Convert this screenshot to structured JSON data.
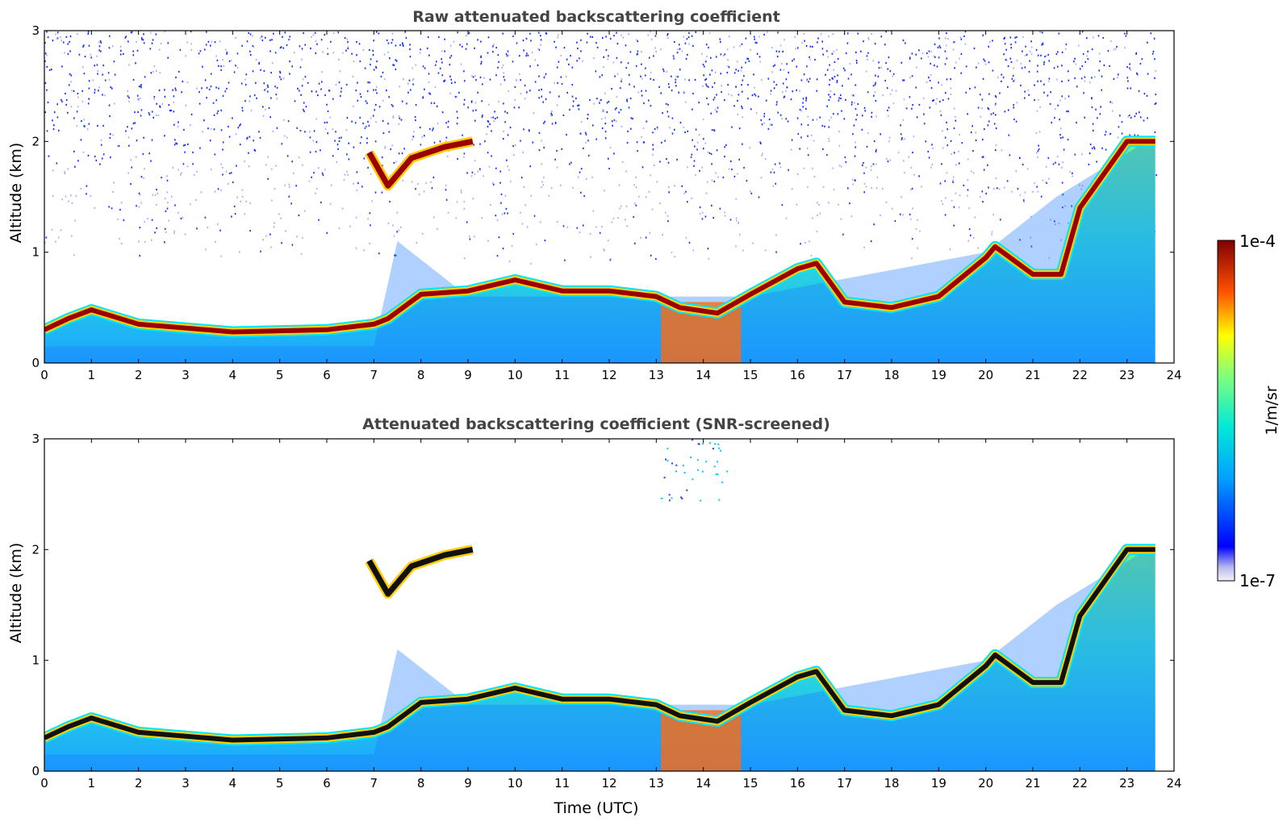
{
  "figure": {
    "colorbar": {
      "label": "1/m/sr",
      "top_label": "1e-4",
      "bottom_label": "1e-7",
      "colormap": "jet",
      "scale": "log",
      "range": [
        1e-07,
        0.0001
      ]
    },
    "xlabel": "Time (UTC)"
  },
  "chart_data": [
    {
      "type": "heatmap",
      "title": "Raw attenuated backscattering coefficient",
      "ylabel": "Altitude (km)",
      "xlabel": "",
      "xlim": [
        0,
        24
      ],
      "ylim": [
        0,
        3
      ],
      "x_ticks": [
        "0",
        "1",
        "2",
        "3",
        "4",
        "5",
        "6",
        "7",
        "8",
        "9",
        "10",
        "11",
        "12",
        "13",
        "14",
        "15",
        "16",
        "17",
        "18",
        "19",
        "20",
        "21",
        "22",
        "23",
        "24"
      ],
      "y_ticks": [
        "0",
        "1",
        "2",
        "3"
      ],
      "screened": false,
      "layer_top_km": {
        "x": [
          0,
          0.5,
          1,
          2,
          4,
          6,
          7,
          7.3,
          8,
          9,
          10,
          11,
          12,
          13,
          13.5,
          14.3,
          15,
          16,
          16.4,
          17,
          18,
          19,
          20,
          20.2,
          21,
          21.6,
          22,
          22.5,
          23,
          23.6
        ],
        "y": [
          0.3,
          0.4,
          0.48,
          0.35,
          0.28,
          0.3,
          0.35,
          0.4,
          0.62,
          0.65,
          0.75,
          0.65,
          0.65,
          0.6,
          0.5,
          0.45,
          0.62,
          0.85,
          0.9,
          0.55,
          0.5,
          0.6,
          0.95,
          1.05,
          0.8,
          0.8,
          1.4,
          1.7,
          2.0,
          2.0
        ]
      },
      "elevated_layer_km": {
        "x": [
          6.9,
          7.3,
          7.8,
          8.5,
          9.1
        ],
        "y": [
          1.9,
          1.6,
          1.85,
          1.95,
          2.0
        ]
      },
      "aerosol_top_km": {
        "x": [
          0,
          7,
          7.5,
          9,
          13,
          15,
          20,
          21.5,
          23.6
        ],
        "y": [
          0.15,
          0.15,
          1.1,
          0.6,
          0.6,
          0.6,
          1.0,
          1.5,
          2.05
        ]
      }
    },
    {
      "type": "heatmap",
      "title": "Attenuated backscattering coefficient (SNR-screened)",
      "ylabel": "Altitude (km)",
      "xlabel": "Time (UTC)",
      "xlim": [
        0,
        24
      ],
      "ylim": [
        0,
        3
      ],
      "x_ticks": [
        "0",
        "1",
        "2",
        "3",
        "4",
        "5",
        "6",
        "7",
        "8",
        "9",
        "10",
        "11",
        "12",
        "13",
        "14",
        "15",
        "16",
        "17",
        "18",
        "19",
        "20",
        "21",
        "22",
        "23",
        "24"
      ],
      "y_ticks": [
        "0",
        "1",
        "2",
        "3"
      ],
      "screened": true,
      "layer_top_km": {
        "x": [
          0,
          0.5,
          1,
          2,
          4,
          6,
          7,
          7.3,
          8,
          9,
          10,
          11,
          12,
          13,
          13.5,
          14.3,
          15,
          16,
          16.4,
          17,
          18,
          19,
          20,
          20.2,
          21,
          21.6,
          22,
          22.5,
          23,
          23.6
        ],
        "y": [
          0.3,
          0.4,
          0.48,
          0.35,
          0.28,
          0.3,
          0.35,
          0.4,
          0.62,
          0.65,
          0.75,
          0.65,
          0.65,
          0.6,
          0.5,
          0.45,
          0.62,
          0.85,
          0.9,
          0.55,
          0.5,
          0.6,
          0.95,
          1.05,
          0.8,
          0.8,
          1.4,
          1.7,
          2.0,
          2.0
        ]
      },
      "elevated_layer_km": {
        "x": [
          6.9,
          7.3,
          7.8,
          8.5,
          9.1
        ],
        "y": [
          1.9,
          1.6,
          1.85,
          1.95,
          2.0
        ]
      },
      "aerosol_top_km": {
        "x": [
          0,
          7,
          7.5,
          9,
          13,
          15,
          20,
          21.5,
          23.6
        ],
        "y": [
          0.15,
          0.15,
          1.1,
          0.6,
          0.6,
          0.6,
          1.0,
          1.5,
          2.05
        ]
      }
    }
  ]
}
